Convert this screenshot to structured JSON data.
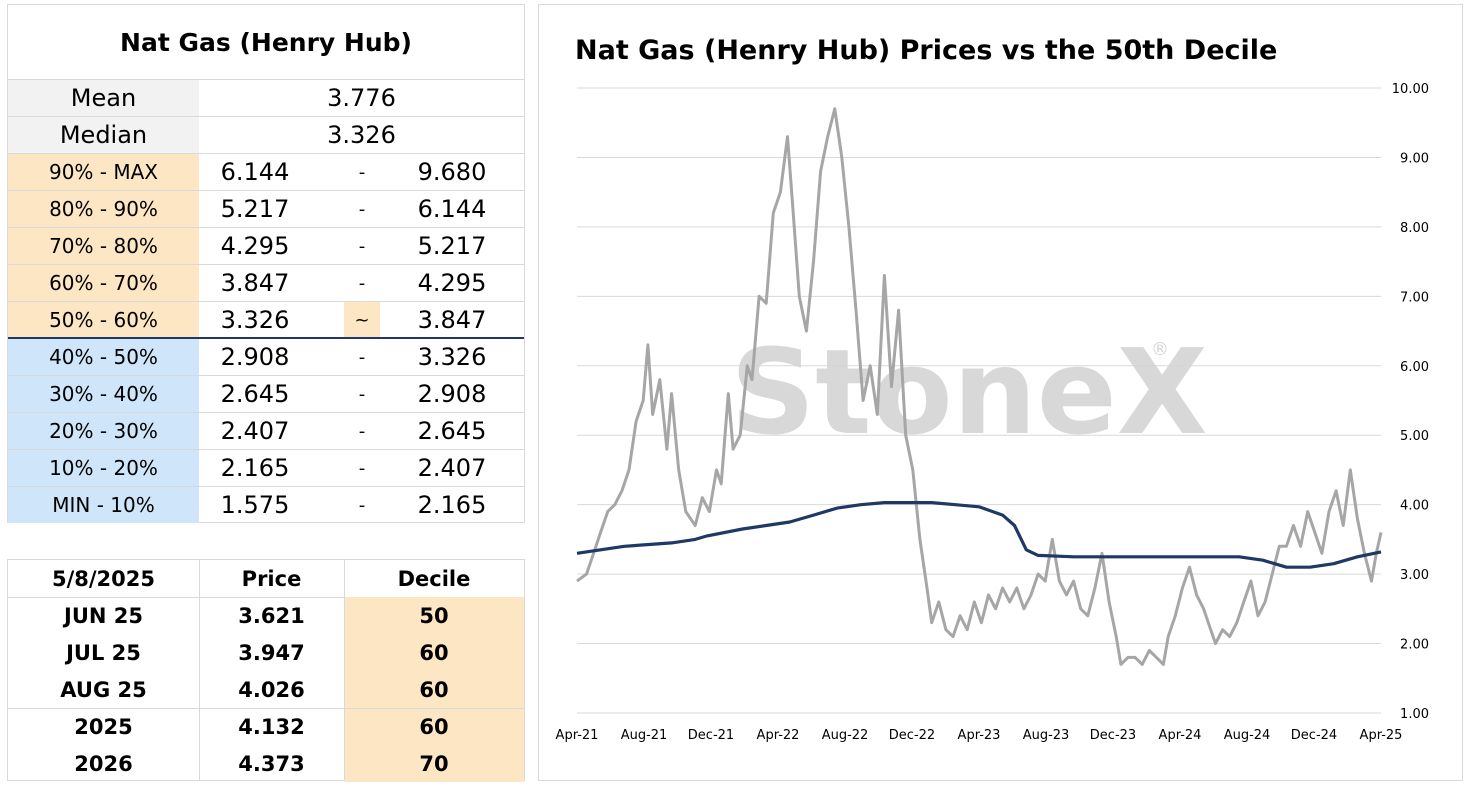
{
  "summary": {
    "title": "Nat Gas (Henry Hub)",
    "stats": [
      {
        "label": "Mean",
        "value": "3.776"
      },
      {
        "label": "Median",
        "value": "3.326"
      }
    ],
    "deciles": [
      {
        "label": "90% - MAX",
        "low": "6.144",
        "sep": "-",
        "high": "9.680",
        "group": "upper"
      },
      {
        "label": "80% - 90%",
        "low": "5.217",
        "sep": "-",
        "high": "6.144",
        "group": "upper"
      },
      {
        "label": "70% - 80%",
        "low": "4.295",
        "sep": "-",
        "high": "5.217",
        "group": "upper"
      },
      {
        "label": "60% - 70%",
        "low": "3.847",
        "sep": "-",
        "high": "4.295",
        "group": "upper"
      },
      {
        "label": "50% - 60%",
        "low": "3.326",
        "sep": "~",
        "high": "3.847",
        "group": "upper"
      },
      {
        "label": "40% - 50%",
        "low": "2.908",
        "sep": "-",
        "high": "3.326",
        "group": "lower"
      },
      {
        "label": "30% - 40%",
        "low": "2.645",
        "sep": "-",
        "high": "2.908",
        "group": "lower"
      },
      {
        "label": "20% - 30%",
        "low": "2.407",
        "sep": "-",
        "high": "2.645",
        "group": "lower"
      },
      {
        "label": "10% - 20%",
        "low": "2.165",
        "sep": "-",
        "high": "2.407",
        "group": "lower"
      },
      {
        "label": "MIN - 10%",
        "low": "1.575",
        "sep": "-",
        "high": "2.165",
        "group": "lower"
      }
    ]
  },
  "contracts": {
    "headers": [
      "5/8/2025",
      "Price",
      "Decile"
    ],
    "rows": [
      {
        "contract": "JUN 25",
        "price": "3.621",
        "decile": "50"
      },
      {
        "contract": "JUL 25",
        "price": "3.947",
        "decile": "60"
      },
      {
        "contract": "AUG 25",
        "price": "4.026",
        "decile": "60"
      },
      {
        "contract": "2025",
        "price": "4.132",
        "decile": "60"
      },
      {
        "contract": "2026",
        "price": "4.373",
        "decile": "70"
      }
    ]
  },
  "chart_data": {
    "type": "line",
    "title": "Nat Gas (Henry Hub) Prices vs the 50th Decile",
    "watermark": "StoneX",
    "watermark_mark": "®",
    "x_tick_labels": [
      "Apr-21",
      "Aug-21",
      "Dec-21",
      "Apr-22",
      "Aug-22",
      "Dec-22",
      "Apr-23",
      "Aug-23",
      "Dec-23",
      "Apr-24",
      "Aug-24",
      "Dec-24",
      "Apr-25"
    ],
    "y_tick_labels": [
      "1.00",
      "2.00",
      "3.00",
      "4.00",
      "5.00",
      "6.00",
      "7.00",
      "8.00",
      "9.00",
      "10.00"
    ],
    "ylim": [
      1,
      10
    ],
    "y_axis_side": "right",
    "grid": true,
    "colors": {
      "price": "#a6a6a6",
      "decile": "#1f3864"
    },
    "series": [
      {
        "role": "price",
        "points": [
          [
            0,
            2.9
          ],
          [
            0.4,
            3.0
          ],
          [
            0.7,
            3.3
          ],
          [
            1.0,
            3.6
          ],
          [
            1.3,
            3.9
          ],
          [
            1.6,
            4.0
          ],
          [
            1.9,
            4.2
          ],
          [
            2.2,
            4.5
          ],
          [
            2.5,
            5.2
          ],
          [
            2.8,
            5.5
          ],
          [
            3.0,
            6.3
          ],
          [
            3.2,
            5.3
          ],
          [
            3.5,
            5.8
          ],
          [
            3.8,
            4.8
          ],
          [
            4.0,
            5.6
          ],
          [
            4.3,
            4.5
          ],
          [
            4.6,
            3.9
          ],
          [
            5.0,
            3.7
          ],
          [
            5.3,
            4.1
          ],
          [
            5.6,
            3.9
          ],
          [
            5.9,
            4.5
          ],
          [
            6.1,
            4.3
          ],
          [
            6.4,
            5.6
          ],
          [
            6.6,
            4.8
          ],
          [
            6.9,
            5.0
          ],
          [
            7.2,
            6.0
          ],
          [
            7.4,
            5.8
          ],
          [
            7.7,
            7.0
          ],
          [
            8.0,
            6.9
          ],
          [
            8.3,
            8.2
          ],
          [
            8.6,
            8.5
          ],
          [
            8.9,
            9.3
          ],
          [
            9.1,
            8.4
          ],
          [
            9.4,
            7.0
          ],
          [
            9.7,
            6.5
          ],
          [
            10.0,
            7.5
          ],
          [
            10.3,
            8.8
          ],
          [
            10.6,
            9.3
          ],
          [
            10.9,
            9.7
          ],
          [
            11.2,
            9.0
          ],
          [
            11.5,
            8.0
          ],
          [
            11.8,
            6.8
          ],
          [
            12.1,
            5.5
          ],
          [
            12.4,
            6.0
          ],
          [
            12.7,
            5.3
          ],
          [
            13.0,
            7.3
          ],
          [
            13.3,
            5.7
          ],
          [
            13.6,
            6.8
          ],
          [
            13.9,
            5.0
          ],
          [
            14.2,
            4.5
          ],
          [
            14.5,
            3.5
          ],
          [
            14.8,
            2.8
          ],
          [
            15.0,
            2.3
          ],
          [
            15.3,
            2.6
          ],
          [
            15.6,
            2.2
          ],
          [
            15.9,
            2.1
          ],
          [
            16.2,
            2.4
          ],
          [
            16.5,
            2.2
          ],
          [
            16.8,
            2.6
          ],
          [
            17.1,
            2.3
          ],
          [
            17.4,
            2.7
          ],
          [
            17.7,
            2.5
          ],
          [
            18.0,
            2.8
          ],
          [
            18.3,
            2.6
          ],
          [
            18.6,
            2.8
          ],
          [
            18.9,
            2.5
          ],
          [
            19.2,
            2.7
          ],
          [
            19.5,
            3.0
          ],
          [
            19.8,
            2.9
          ],
          [
            20.1,
            3.5
          ],
          [
            20.4,
            2.9
          ],
          [
            20.7,
            2.7
          ],
          [
            21.0,
            2.9
          ],
          [
            21.3,
            2.5
          ],
          [
            21.6,
            2.4
          ],
          [
            21.9,
            2.8
          ],
          [
            22.2,
            3.3
          ],
          [
            22.5,
            2.6
          ],
          [
            22.8,
            2.1
          ],
          [
            23.0,
            1.7
          ],
          [
            23.3,
            1.8
          ],
          [
            23.6,
            1.8
          ],
          [
            23.9,
            1.7
          ],
          [
            24.2,
            1.9
          ],
          [
            24.5,
            1.8
          ],
          [
            24.8,
            1.7
          ],
          [
            25.0,
            2.1
          ],
          [
            25.3,
            2.4
          ],
          [
            25.6,
            2.8
          ],
          [
            25.9,
            3.1
          ],
          [
            26.2,
            2.7
          ],
          [
            26.5,
            2.5
          ],
          [
            26.8,
            2.2
          ],
          [
            27.0,
            2.0
          ],
          [
            27.3,
            2.2
          ],
          [
            27.6,
            2.1
          ],
          [
            27.9,
            2.3
          ],
          [
            28.2,
            2.6
          ],
          [
            28.5,
            2.9
          ],
          [
            28.8,
            2.4
          ],
          [
            29.1,
            2.6
          ],
          [
            29.4,
            3.0
          ],
          [
            29.7,
            3.4
          ],
          [
            30.0,
            3.4
          ],
          [
            30.3,
            3.7
          ],
          [
            30.6,
            3.4
          ],
          [
            30.9,
            3.9
          ],
          [
            31.2,
            3.6
          ],
          [
            31.5,
            3.3
          ],
          [
            31.8,
            3.9
          ],
          [
            32.1,
            4.2
          ],
          [
            32.4,
            3.7
          ],
          [
            32.7,
            4.5
          ],
          [
            33.0,
            3.8
          ],
          [
            33.3,
            3.3
          ],
          [
            33.6,
            2.9
          ],
          [
            33.8,
            3.3
          ],
          [
            34.0,
            3.6
          ]
        ]
      },
      {
        "role": "decile",
        "points": [
          [
            0,
            3.3
          ],
          [
            2.0,
            3.4
          ],
          [
            4.0,
            3.45
          ],
          [
            5.0,
            3.5
          ],
          [
            5.5,
            3.55
          ],
          [
            7.0,
            3.65
          ],
          [
            8.0,
            3.7
          ],
          [
            9.0,
            3.75
          ],
          [
            10.0,
            3.85
          ],
          [
            11.0,
            3.95
          ],
          [
            12.0,
            4.0
          ],
          [
            13.0,
            4.03
          ],
          [
            14.0,
            4.03
          ],
          [
            15.0,
            4.03
          ],
          [
            16.0,
            4.0
          ],
          [
            17.0,
            3.97
          ],
          [
            18.0,
            3.85
          ],
          [
            18.5,
            3.7
          ],
          [
            19.0,
            3.35
          ],
          [
            19.5,
            3.27
          ],
          [
            21.0,
            3.25
          ],
          [
            23.0,
            3.25
          ],
          [
            26.0,
            3.25
          ],
          [
            28.0,
            3.25
          ],
          [
            29.0,
            3.2
          ],
          [
            30.0,
            3.1
          ],
          [
            31.0,
            3.1
          ],
          [
            32.0,
            3.15
          ],
          [
            33.0,
            3.25
          ],
          [
            34.0,
            3.32
          ]
        ]
      }
    ],
    "x_range": [
      0,
      34
    ]
  }
}
